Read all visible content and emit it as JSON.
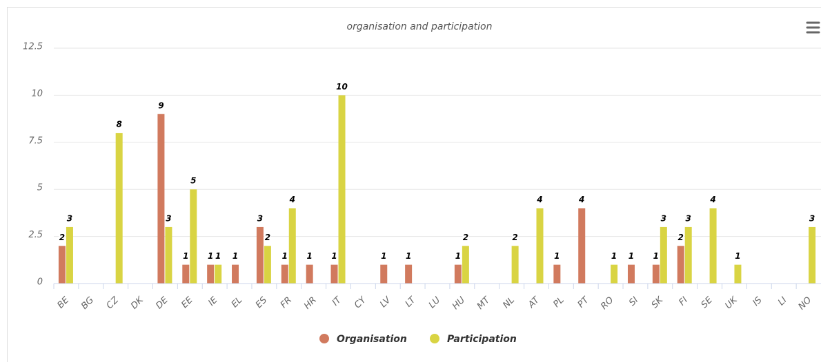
{
  "chart_data": {
    "type": "bar",
    "title": "organisation and participation",
    "categories": [
      "BE",
      "BG",
      "CZ",
      "DK",
      "DE",
      "EE",
      "IE",
      "EL",
      "ES",
      "FR",
      "HR",
      "IT",
      "CY",
      "LV",
      "LT",
      "LU",
      "HU",
      "MT",
      "NL",
      "AT",
      "PL",
      "PT",
      "RO",
      "SI",
      "SK",
      "FI",
      "SE",
      "UK",
      "IS",
      "LI",
      "NO"
    ],
    "series": [
      {
        "name": "Organisation",
        "color": "#d17a5e",
        "values": [
          2,
          null,
          null,
          null,
          9,
          1,
          1,
          1,
          3,
          1,
          1,
          1,
          null,
          1,
          1,
          null,
          1,
          null,
          null,
          null,
          1,
          4,
          null,
          1,
          1,
          2,
          null,
          null,
          null,
          null,
          null
        ]
      },
      {
        "name": "Participation",
        "color": "#d9d443",
        "values": [
          3,
          null,
          8,
          null,
          3,
          5,
          1,
          null,
          2,
          4,
          null,
          10,
          null,
          null,
          null,
          null,
          2,
          null,
          2,
          4,
          null,
          null,
          1,
          null,
          3,
          3,
          4,
          1,
          null,
          null,
          3
        ]
      }
    ],
    "ylim": [
      0,
      12.5
    ],
    "yticks": [
      0,
      2.5,
      5,
      7.5,
      10,
      12.5
    ],
    "grid": true,
    "legend": "bottom"
  }
}
